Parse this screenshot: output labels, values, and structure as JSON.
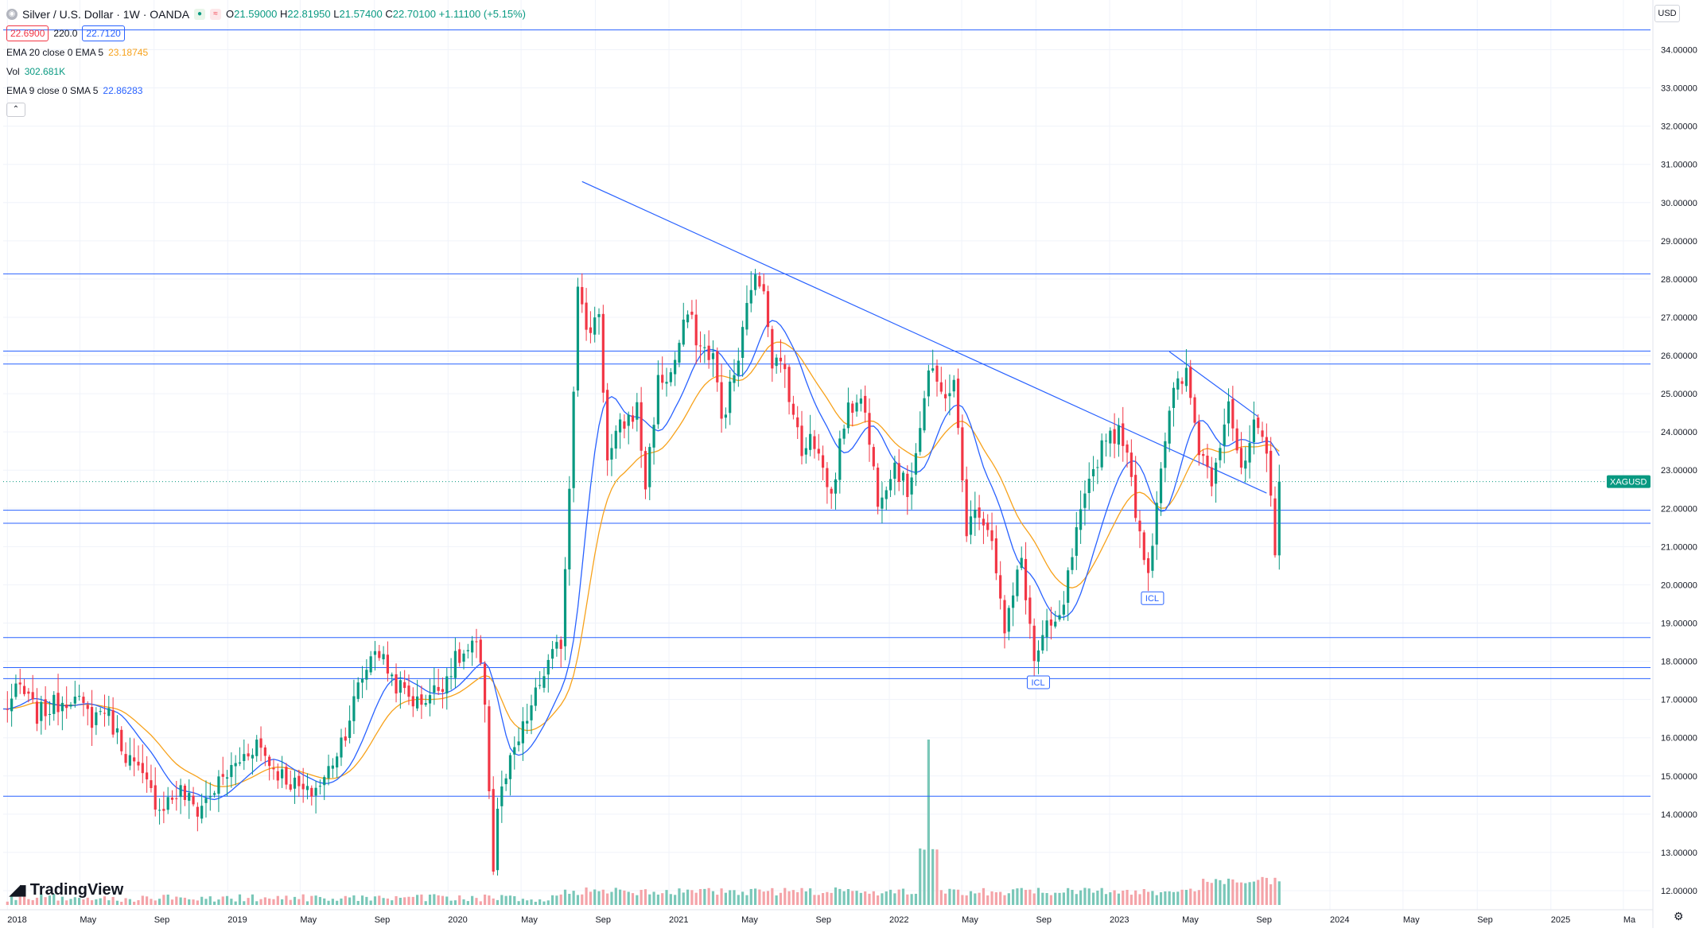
{
  "header": {
    "title": "Silver / U.S. Dollar · 1W · OANDA",
    "ohlc": {
      "o_label": "O",
      "o": "21.59000",
      "h_label": "H",
      "h": "22.81950",
      "l_label": "L",
      "l": "21.57400",
      "c_label": "C",
      "c": "22.70100",
      "change": "+1.11100 (+5.15%)"
    },
    "sell_price": "22.6900",
    "spread": "220.0",
    "buy_price": "22.7120"
  },
  "indicators": [
    {
      "label": "EMA 20 close 0 EMA 5",
      "value": "23.18745",
      "color": "#f7a21b"
    },
    {
      "label": "Vol",
      "value": "302.681K",
      "color": "#089981"
    },
    {
      "label": "EMA 9 close 0 SMA 5",
      "value": "22.86283",
      "color": "#2962ff"
    }
  ],
  "currency": "USD",
  "brand": "TradingView",
  "symbol_tag": "XAGUSD",
  "colors": {
    "up": "#089981",
    "down": "#f23645",
    "ema20": "#f7a21b",
    "ema9": "#2962ff",
    "level": "#2962ff",
    "vol_up": "#79c7b8",
    "vol_down": "#f4a3a8",
    "grid": "#f0f3fa"
  },
  "chart_data": {
    "type": "candlestick",
    "timeframe": "1W",
    "ylim": [
      11.5,
      35.3
    ],
    "y_ticks": [
      "12.00000",
      "13.00000",
      "14.00000",
      "15.00000",
      "16.00000",
      "17.00000",
      "18.00000",
      "19.00000",
      "20.00000",
      "21.00000",
      "22.00000",
      "23.00000",
      "24.00000",
      "25.00000",
      "26.00000",
      "27.00000",
      "28.00000",
      "29.00000",
      "30.00000",
      "31.00000",
      "32.00000",
      "33.00000",
      "34.00000"
    ],
    "x_ticks": [
      "2018",
      "May",
      "Sep",
      "2019",
      "May",
      "Sep",
      "2020",
      "May",
      "Sep",
      "2021",
      "May",
      "Sep",
      "2022",
      "May",
      "Sep",
      "2023",
      "May",
      "Sep",
      "2024",
      "May",
      "Sep",
      "2025",
      "Ma"
    ],
    "x_range": [
      "2017-12-25",
      "2025-06-15"
    ],
    "last_price": "22.70100",
    "support_resistance_levels": [
      "34.51705",
      "28.13559",
      "26.11584",
      "25.77723",
      "21.95127",
      "21.61052",
      "18.62035",
      "17.83576",
      "17.54518",
      "14.47044"
    ],
    "trendlines": [
      {
        "from": {
          "date": "2020-08-10",
          "price": 30.55
        },
        "to": {
          "date": "2023-09-18",
          "price": 22.4
        }
      },
      {
        "from": {
          "date": "2023-04-10",
          "price": 26.1
        },
        "to": {
          "date": "2023-09-04",
          "price": 24.4
        }
      }
    ],
    "annotations": [
      {
        "label": "ICL",
        "date": "2022-09-05",
        "price": 17.7
      },
      {
        "label": "ICL",
        "date": "2023-03-13",
        "price": 19.9
      }
    ],
    "keypoints": [
      [
        "2017-12-25",
        16.7
      ],
      [
        "2018-01-22",
        17.3
      ],
      [
        "2018-02-19",
        16.6
      ],
      [
        "2018-04-16",
        17.1
      ],
      [
        "2018-05-21",
        16.5
      ],
      [
        "2018-06-11",
        16.8
      ],
      [
        "2018-07-16",
        15.6
      ],
      [
        "2018-08-13",
        14.9
      ],
      [
        "2018-09-10",
        14.2
      ],
      [
        "2018-10-15",
        14.6
      ],
      [
        "2018-11-12",
        14.1
      ],
      [
        "2018-12-17",
        14.8
      ],
      [
        "2019-02-18",
        15.9
      ],
      [
        "2019-03-18",
        15.2
      ],
      [
        "2019-05-13",
        14.5
      ],
      [
        "2019-06-10",
        14.9
      ],
      [
        "2019-07-15",
        16.2
      ],
      [
        "2019-08-05",
        17.3
      ],
      [
        "2019-09-02",
        18.4
      ],
      [
        "2019-10-07",
        17.4
      ],
      [
        "2019-11-11",
        16.9
      ],
      [
        "2019-12-16",
        17.3
      ],
      [
        "2020-01-13",
        18.0
      ],
      [
        "2020-02-17",
        18.4
      ],
      [
        "2020-03-02",
        17.0
      ],
      [
        "2020-03-16",
        12.5
      ],
      [
        "2020-03-23",
        14.2
      ],
      [
        "2020-04-13",
        15.3
      ],
      [
        "2020-05-11",
        16.5
      ],
      [
        "2020-06-08",
        17.7
      ],
      [
        "2020-07-06",
        18.5
      ],
      [
        "2020-07-20",
        22.6
      ],
      [
        "2020-08-03",
        28.0
      ],
      [
        "2020-08-17",
        26.5
      ],
      [
        "2020-09-07",
        27.2
      ],
      [
        "2020-09-21",
        23.2
      ],
      [
        "2020-10-12",
        24.1
      ],
      [
        "2020-11-09",
        24.6
      ],
      [
        "2020-11-23",
        22.6
      ],
      [
        "2020-12-14",
        25.3
      ],
      [
        "2021-01-04",
        25.5
      ],
      [
        "2021-02-01",
        27.1
      ],
      [
        "2021-02-22",
        26.2
      ],
      [
        "2021-03-15",
        26.0
      ],
      [
        "2021-03-29",
        24.3
      ],
      [
        "2021-04-26",
        25.9
      ],
      [
        "2021-05-17",
        27.9
      ],
      [
        "2021-06-07",
        27.9
      ],
      [
        "2021-06-21",
        25.9
      ],
      [
        "2021-07-12",
        25.6
      ],
      [
        "2021-08-09",
        23.4
      ],
      [
        "2021-08-23",
        24.1
      ],
      [
        "2021-09-27",
        22.3
      ],
      [
        "2021-10-18",
        24.3
      ],
      [
        "2021-11-15",
        25.1
      ],
      [
        "2021-12-13",
        22.3
      ],
      [
        "2022-01-10",
        23.2
      ],
      [
        "2022-01-31",
        22.4
      ],
      [
        "2022-02-21",
        24.2
      ],
      [
        "2022-03-07",
        25.6
      ],
      [
        "2022-03-28",
        25.0
      ],
      [
        "2022-04-18",
        25.2
      ],
      [
        "2022-05-09",
        21.5
      ],
      [
        "2022-05-30",
        22.0
      ],
      [
        "2022-06-20",
        21.3
      ],
      [
        "2022-07-11",
        18.7
      ],
      [
        "2022-08-08",
        20.7
      ],
      [
        "2022-08-29",
        18.0
      ],
      [
        "2022-09-19",
        18.8
      ],
      [
        "2022-10-10",
        19.0
      ],
      [
        "2022-11-07",
        21.3
      ],
      [
        "2022-12-05",
        23.0
      ],
      [
        "2022-12-26",
        24.0
      ],
      [
        "2023-01-23",
        23.9
      ],
      [
        "2023-02-13",
        22.0
      ],
      [
        "2023-03-06",
        20.3
      ],
      [
        "2023-03-27",
        23.2
      ],
      [
        "2023-04-17",
        25.0
      ],
      [
        "2023-05-08",
        25.5
      ],
      [
        "2023-05-29",
        23.6
      ],
      [
        "2023-06-19",
        22.8
      ],
      [
        "2023-07-17",
        24.9
      ],
      [
        "2023-08-07",
        22.8
      ],
      [
        "2023-08-28",
        24.1
      ],
      [
        "2023-09-18",
        23.4
      ],
      [
        "2023-10-02",
        21.0
      ],
      [
        "2023-10-09",
        22.7
      ]
    ],
    "volume_peak": {
      "date": "2022-03-07",
      "label": "spike"
    }
  }
}
